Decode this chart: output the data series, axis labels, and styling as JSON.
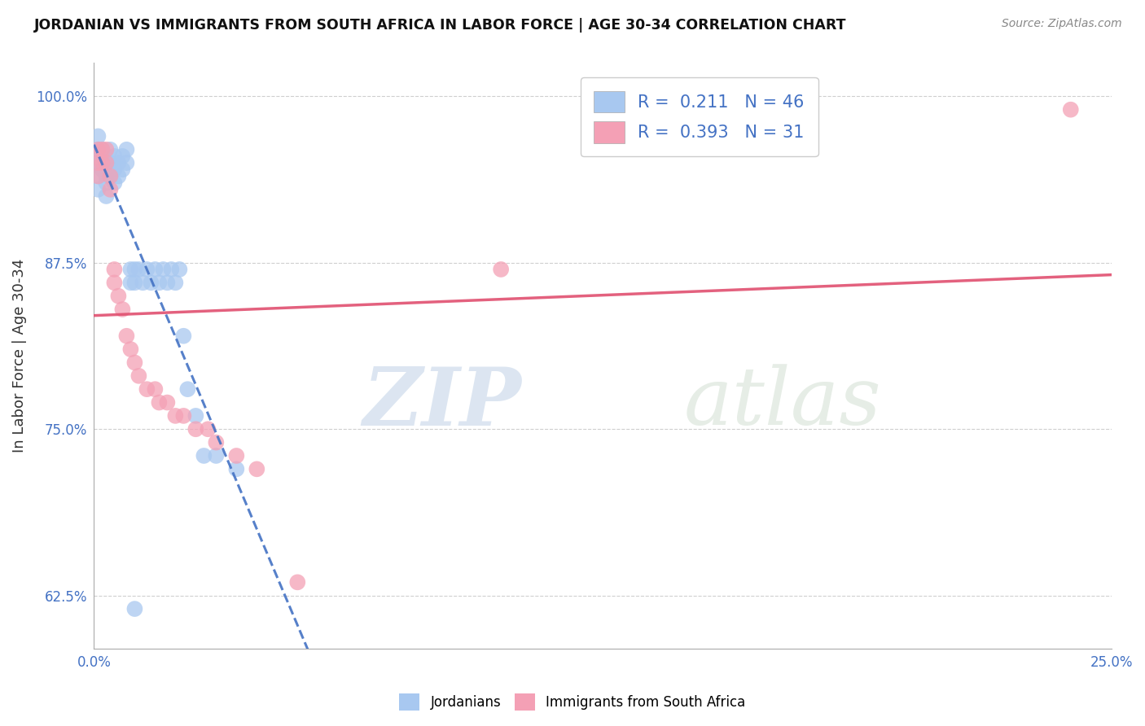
{
  "title": "JORDANIAN VS IMMIGRANTS FROM SOUTH AFRICA IN LABOR FORCE | AGE 30-34 CORRELATION CHART",
  "source": "Source: ZipAtlas.com",
  "ylabel": "In Labor Force | Age 30-34",
  "x_min": 0.0,
  "x_max": 0.25,
  "y_min": 0.585,
  "y_max": 1.025,
  "y_ticks": [
    0.625,
    0.75,
    0.875,
    1.0
  ],
  "y_tick_labels": [
    "62.5%",
    "75.0%",
    "87.5%",
    "100.0%"
  ],
  "R_blue": 0.211,
  "N_blue": 46,
  "R_pink": 0.393,
  "N_pink": 31,
  "blue_color": "#a8c8f0",
  "pink_color": "#f4a0b5",
  "blue_line_color": "#4472c4",
  "pink_line_color": "#e05070",
  "legend_label_blue": "Jordanians",
  "legend_label_pink": "Immigrants from South Africa",
  "watermark_zip": "ZIP",
  "watermark_atlas": "atlas",
  "blue_scatter_x": [
    0.001,
    0.001,
    0.001,
    0.001,
    0.001,
    0.002,
    0.002,
    0.002,
    0.003,
    0.003,
    0.003,
    0.003,
    0.004,
    0.004,
    0.004,
    0.005,
    0.005,
    0.005,
    0.006,
    0.006,
    0.007,
    0.007,
    0.008,
    0.008,
    0.009,
    0.009,
    0.01,
    0.01,
    0.011,
    0.012,
    0.013,
    0.014,
    0.015,
    0.016,
    0.017,
    0.018,
    0.019,
    0.02,
    0.021,
    0.022,
    0.023,
    0.025,
    0.027,
    0.03,
    0.035,
    0.01
  ],
  "blue_scatter_y": [
    0.97,
    0.96,
    0.95,
    0.94,
    0.93,
    0.96,
    0.955,
    0.945,
    0.95,
    0.94,
    0.935,
    0.925,
    0.96,
    0.95,
    0.94,
    0.955,
    0.945,
    0.935,
    0.95,
    0.94,
    0.955,
    0.945,
    0.96,
    0.95,
    0.87,
    0.86,
    0.87,
    0.86,
    0.87,
    0.86,
    0.87,
    0.86,
    0.87,
    0.86,
    0.87,
    0.86,
    0.87,
    0.86,
    0.87,
    0.82,
    0.78,
    0.76,
    0.73,
    0.73,
    0.72,
    0.615
  ],
  "pink_scatter_x": [
    0.001,
    0.001,
    0.001,
    0.002,
    0.002,
    0.003,
    0.003,
    0.004,
    0.004,
    0.005,
    0.005,
    0.006,
    0.007,
    0.008,
    0.009,
    0.01,
    0.011,
    0.013,
    0.015,
    0.016,
    0.018,
    0.02,
    0.022,
    0.025,
    0.028,
    0.03,
    0.035,
    0.04,
    0.05,
    0.1,
    0.24
  ],
  "pink_scatter_y": [
    0.96,
    0.95,
    0.94,
    0.96,
    0.95,
    0.96,
    0.95,
    0.94,
    0.93,
    0.87,
    0.86,
    0.85,
    0.84,
    0.82,
    0.81,
    0.8,
    0.79,
    0.78,
    0.78,
    0.77,
    0.77,
    0.76,
    0.76,
    0.75,
    0.75,
    0.74,
    0.73,
    0.72,
    0.635,
    0.87,
    0.99
  ]
}
